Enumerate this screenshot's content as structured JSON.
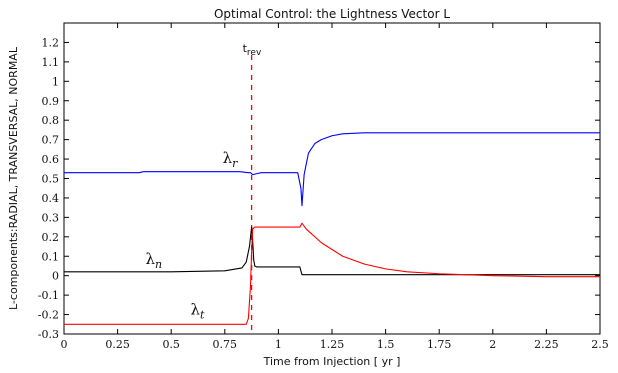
{
  "chart_data": {
    "type": "line",
    "title": "Optimal Control: the Lightness Vector L",
    "xlabel": "Time from Injection [ yr ]",
    "ylabel": "L-components:RADIAL, TRANSVERSAL, NORMAL",
    "xlim": [
      0,
      2.5
    ],
    "ylim": [
      -0.3,
      1.3
    ],
    "xticks": [
      0,
      0.25,
      0.5,
      0.75,
      1,
      1.25,
      1.5,
      1.75,
      2,
      2.25,
      2.5
    ],
    "xtick_labels": [
      "0",
      "0.25",
      "0.5",
      "0.75",
      "1",
      "1.25",
      "1.5",
      "1.75",
      "2",
      "2.25",
      "2.5"
    ],
    "yticks": [
      -0.3,
      -0.2,
      -0.1,
      0,
      0.1,
      0.2,
      0.3,
      0.4,
      0.5,
      0.6,
      0.7,
      0.8,
      0.9,
      1,
      1.1,
      1.2
    ],
    "ytick_labels": [
      "-0.3",
      "-0.2",
      "-0.1",
      "0",
      "0.1",
      "0.2",
      "0.3",
      "0.4",
      "0.5",
      "0.6",
      "0.7",
      "0.8",
      "0.9",
      "1",
      "1.1",
      "1.2"
    ],
    "grid": false,
    "series": [
      {
        "color": "#0000ff",
        "x": [
          0,
          0.2,
          0.35,
          0.37,
          0.5,
          0.7,
          0.82,
          0.86,
          0.87,
          0.88,
          0.9,
          0.92,
          1.0,
          1.09,
          1.105,
          1.11,
          1.12,
          1.14,
          1.17,
          1.2,
          1.25,
          1.3,
          1.4,
          1.5,
          1.7,
          2.0,
          2.5
        ],
        "y": [
          0.53,
          0.53,
          0.53,
          0.535,
          0.535,
          0.535,
          0.535,
          0.53,
          0.53,
          0.52,
          0.525,
          0.53,
          0.53,
          0.53,
          0.45,
          0.36,
          0.52,
          0.63,
          0.68,
          0.7,
          0.72,
          0.73,
          0.735,
          0.735,
          0.735,
          0.735,
          0.735
        ]
      },
      {
        "color": "#000000",
        "x": [
          0,
          0.2,
          0.5,
          0.75,
          0.83,
          0.85,
          0.865,
          0.875,
          0.88,
          0.885,
          0.89,
          0.9,
          0.95,
          1.0,
          1.1,
          1.11,
          1.15,
          1.5,
          2.0,
          2.5
        ],
        "y": [
          0.02,
          0.02,
          0.02,
          0.025,
          0.04,
          0.07,
          0.15,
          0.25,
          0.18,
          0.08,
          0.05,
          0.045,
          0.045,
          0.045,
          0.045,
          0.005,
          0.005,
          0.005,
          0.005,
          0.005
        ]
      },
      {
        "color": "#ff0000",
        "x": [
          0,
          0.2,
          0.5,
          0.75,
          0.85,
          0.86,
          0.87,
          0.875,
          0.88,
          0.89,
          0.9,
          1.0,
          1.1,
          1.11,
          1.13,
          1.2,
          1.3,
          1.4,
          1.5,
          1.6,
          1.75,
          2.0,
          2.25,
          2.5
        ],
        "y": [
          -0.25,
          -0.25,
          -0.25,
          -0.25,
          -0.25,
          -0.22,
          -0.05,
          0.12,
          0.24,
          0.25,
          0.25,
          0.25,
          0.25,
          0.27,
          0.24,
          0.17,
          0.1,
          0.06,
          0.035,
          0.02,
          0.01,
          0.0,
          -0.005,
          -0.005
        ]
      }
    ],
    "annotations": [
      {
        "base": "λ",
        "sub": "r",
        "x": 0.74,
        "y": 0.58
      },
      {
        "base": "λ",
        "sub": "n",
        "x": 0.38,
        "y": 0.06
      },
      {
        "base": "λ",
        "sub": "t",
        "x": 0.59,
        "y": -0.2
      }
    ],
    "vline": {
      "x": 0.875,
      "color": "#ff0000",
      "style": "dashed",
      "label": "t",
      "label_sub": "rev"
    }
  }
}
